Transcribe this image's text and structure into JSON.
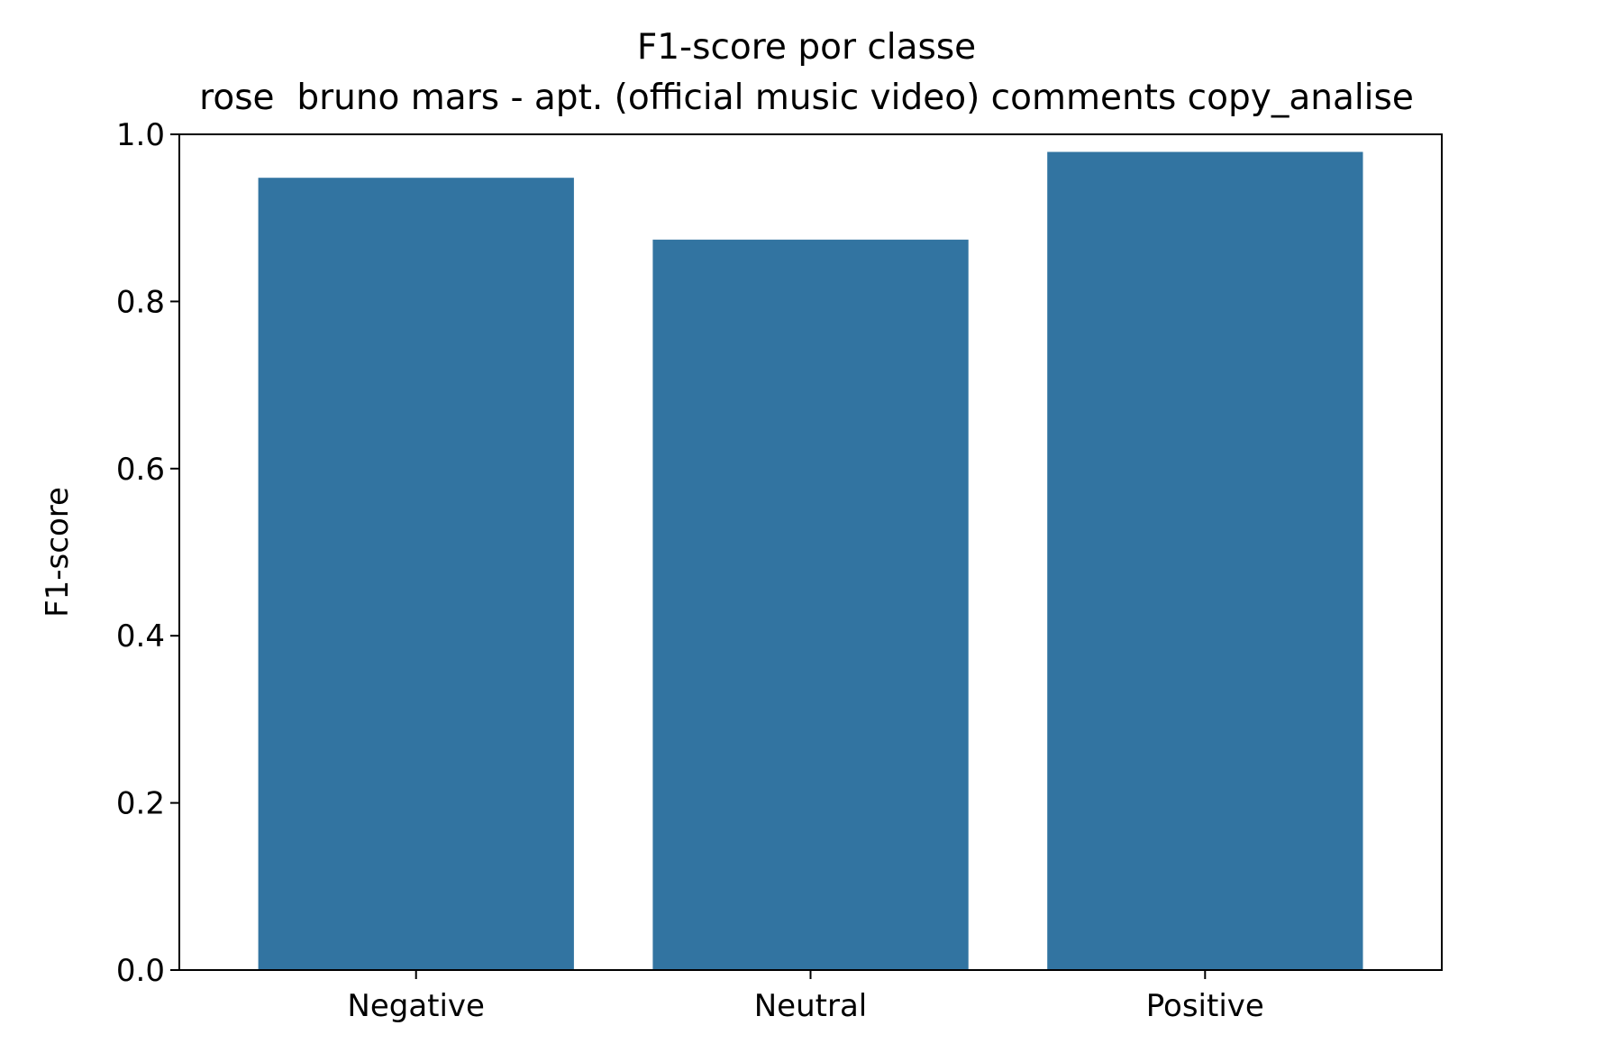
{
  "chart_data": {
    "type": "bar",
    "title": "F1-score por classe",
    "subtitle": "rose  bruno mars - apt. (official music video) comments copy_analise",
    "xlabel": "",
    "ylabel": "F1-score",
    "categories": [
      "Negative",
      "Neutral",
      "Positive"
    ],
    "values": [
      0.948,
      0.874,
      0.979
    ],
    "ylim": [
      0,
      1.0
    ],
    "yticks": [
      0.0,
      0.2,
      0.4,
      0.6,
      0.8,
      1.0
    ],
    "ytick_labels": [
      "0.0",
      "0.2",
      "0.4",
      "0.6",
      "0.8",
      "1.0"
    ],
    "bar_color": "#3274a1",
    "grid": false,
    "legend": "none"
  }
}
